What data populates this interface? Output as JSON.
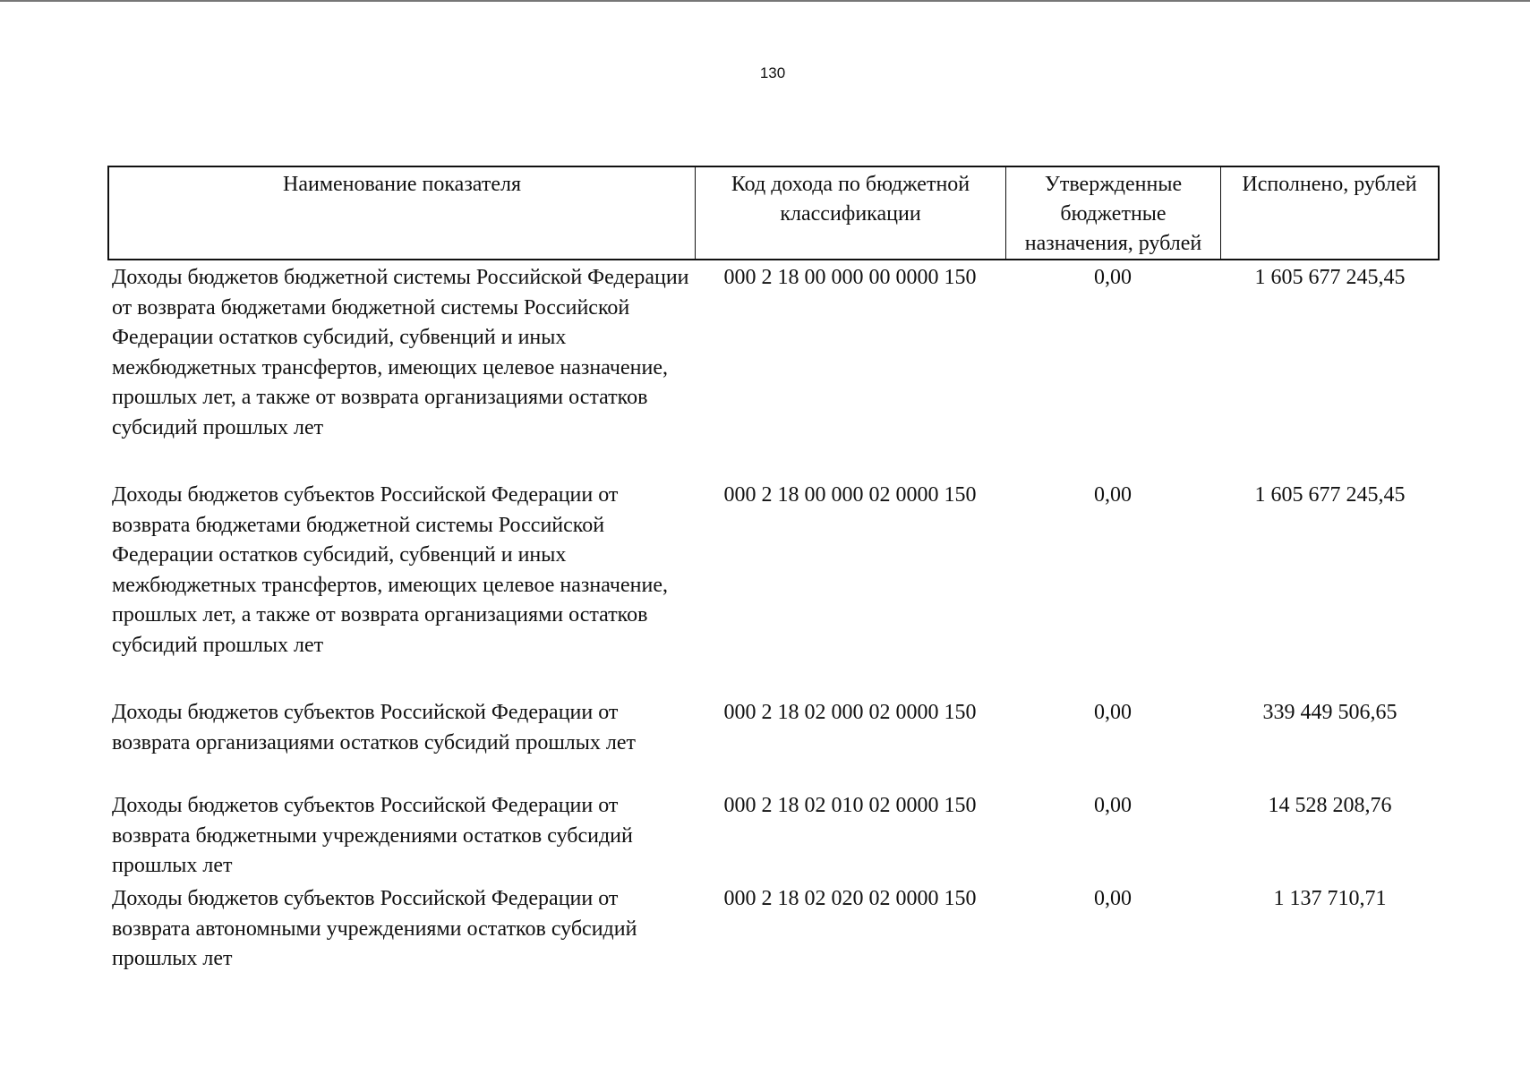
{
  "page_number": "130",
  "table": {
    "headers": [
      "Наименование показателя",
      "Код дохода по бюджетной классификации",
      "Утвержденные бюджетные назначения, рублей",
      "Исполнено, рублей"
    ],
    "rows": [
      {
        "name": "Доходы бюджетов бюджетной системы Российской Федерации от возврата бюджетами бюджетной системы Российской Федерации остатков субсидий, субвенций и иных межбюджетных трансфертов, имеющих целевое назначение, прошлых лет, а также от возврата организациями остатков субсидий прошлых лет",
        "code": "000 2 18 00 000 00 0000 150",
        "approved": "0,00",
        "executed": "1 605 677 245,45"
      },
      {
        "name": "Доходы бюджетов субъектов Российской Федерации от возврата бюджетами бюджетной системы Российской Федерации остатков субсидий, субвенций и иных межбюджетных трансфертов, имеющих целевое назначение, прошлых лет, а также от возврата организациями остатков субсидий прошлых лет",
        "code": "000 2 18 00 000 02 0000 150",
        "approved": "0,00",
        "executed": "1 605 677 245,45"
      },
      {
        "name": "Доходы бюджетов субъектов Российской Федерации от возврата организациями остатков субсидий прошлых лет",
        "code": "000 2 18 02 000 02 0000 150",
        "approved": "0,00",
        "executed": "339 449 506,65"
      },
      {
        "name": "Доходы бюджетов субъектов Российской Федерации от возврата бюджетными учреждениями остатков субсидий прошлых лет",
        "code": "000 2 18 02 010 02 0000 150",
        "approved": "0,00",
        "executed": "14 528 208,76"
      },
      {
        "name": "Доходы бюджетов субъектов Российской Федерации от возврата автономными учреждениями остатков субсидий прошлых лет",
        "code": "000 2 18 02 020 02 0000 150",
        "approved": "0,00",
        "executed": "1 137 710,71"
      }
    ]
  }
}
